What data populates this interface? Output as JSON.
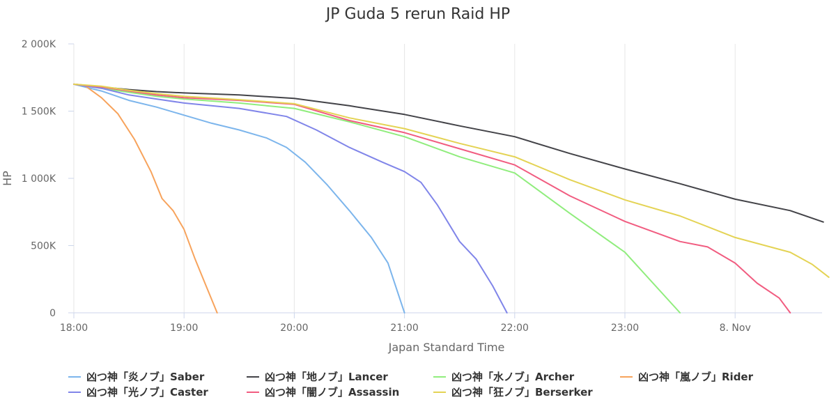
{
  "chart_data": {
    "type": "line",
    "title": "JP Guda 5 rerun Raid HP",
    "xlabel": "Japan Standard Time",
    "ylabel": "HP",
    "x_start": "18:00",
    "x_tick_labels": [
      "18:00",
      "19:00",
      "20:00",
      "21:00",
      "22:00",
      "23:00",
      "8. Nov"
    ],
    "y_tick_labels": [
      "0",
      "500K",
      "1 000K",
      "1 500K",
      "2 000K"
    ],
    "ylim": [
      0,
      2000
    ],
    "grid": "vertical",
    "legend_position": "bottom",
    "series": [
      {
        "name": "凶つ神「炎ノブ」Saber",
        "color": "#7cb5ec",
        "points": [
          [
            0,
            1700
          ],
          [
            0.25,
            1650
          ],
          [
            0.5,
            1580
          ],
          [
            0.75,
            1530
          ],
          [
            1,
            1470
          ],
          [
            1.25,
            1410
          ],
          [
            1.5,
            1360
          ],
          [
            1.75,
            1300
          ],
          [
            1.93,
            1230
          ],
          [
            2.1,
            1120
          ],
          [
            2.3,
            950
          ],
          [
            2.5,
            760
          ],
          [
            2.7,
            560
          ],
          [
            2.85,
            370
          ],
          [
            3.0,
            0
          ]
        ]
      },
      {
        "name": "凶つ神「地ノブ」Lancer",
        "color": "#434348",
        "points": [
          [
            0,
            1700
          ],
          [
            0.25,
            1680
          ],
          [
            0.5,
            1660
          ],
          [
            0.75,
            1645
          ],
          [
            1,
            1635
          ],
          [
            1.5,
            1620
          ],
          [
            2,
            1595
          ],
          [
            2.5,
            1540
          ],
          [
            3,
            1475
          ],
          [
            3.5,
            1390
          ],
          [
            4,
            1310
          ],
          [
            4.5,
            1185
          ],
          [
            5,
            1070
          ],
          [
            5.5,
            960
          ],
          [
            6,
            845
          ],
          [
            6.5,
            760
          ],
          [
            6.8,
            675
          ]
        ]
      },
      {
        "name": "凶つ神「水ノブ」Archer",
        "color": "#90ed7d",
        "points": [
          [
            0,
            1700
          ],
          [
            0.25,
            1670
          ],
          [
            0.5,
            1640
          ],
          [
            0.75,
            1610
          ],
          [
            1,
            1590
          ],
          [
            1.5,
            1560
          ],
          [
            2,
            1520
          ],
          [
            2.5,
            1420
          ],
          [
            3,
            1310
          ],
          [
            3.5,
            1160
          ],
          [
            4,
            1040
          ],
          [
            4.5,
            740
          ],
          [
            5,
            450
          ],
          [
            5.5,
            0
          ]
        ]
      },
      {
        "name": "凶つ神「嵐ノブ」Rider",
        "color": "#f7a35c",
        "points": [
          [
            0,
            1700
          ],
          [
            0.1,
            1690
          ],
          [
            0.25,
            1600
          ],
          [
            0.4,
            1480
          ],
          [
            0.55,
            1290
          ],
          [
            0.7,
            1050
          ],
          [
            0.8,
            850
          ],
          [
            0.9,
            760
          ],
          [
            1,
            620
          ],
          [
            1.1,
            400
          ],
          [
            1.2,
            200
          ],
          [
            1.3,
            0
          ]
        ]
      },
      {
        "name": "凶つ神「光ノブ」Caster",
        "color": "#8085e9",
        "points": [
          [
            0,
            1700
          ],
          [
            0.25,
            1670
          ],
          [
            0.5,
            1620
          ],
          [
            0.75,
            1590
          ],
          [
            1,
            1560
          ],
          [
            1.5,
            1520
          ],
          [
            1.93,
            1460
          ],
          [
            2.2,
            1360
          ],
          [
            2.5,
            1230
          ],
          [
            2.8,
            1120
          ],
          [
            3.0,
            1050
          ],
          [
            3.15,
            970
          ],
          [
            3.3,
            800
          ],
          [
            3.5,
            530
          ],
          [
            3.65,
            400
          ],
          [
            3.8,
            200
          ],
          [
            3.93,
            0
          ]
        ]
      },
      {
        "name": "凶つ神「闇ノブ」Assassin",
        "color": "#f15c80",
        "points": [
          [
            0,
            1700
          ],
          [
            0.25,
            1680
          ],
          [
            0.5,
            1650
          ],
          [
            0.75,
            1620
          ],
          [
            1,
            1600
          ],
          [
            1.5,
            1580
          ],
          [
            2,
            1550
          ],
          [
            2.5,
            1430
          ],
          [
            3,
            1340
          ],
          [
            3.5,
            1220
          ],
          [
            4,
            1100
          ],
          [
            4.5,
            870
          ],
          [
            5,
            680
          ],
          [
            5.5,
            530
          ],
          [
            5.75,
            490
          ],
          [
            6,
            370
          ],
          [
            6.2,
            220
          ],
          [
            6.4,
            110
          ],
          [
            6.5,
            0
          ]
        ]
      },
      {
        "name": "凶つ神「狂ノブ」Berserker",
        "color": "#e4d354",
        "points": [
          [
            0,
            1700
          ],
          [
            0.25,
            1685
          ],
          [
            0.5,
            1655
          ],
          [
            0.75,
            1630
          ],
          [
            1,
            1610
          ],
          [
            1.5,
            1585
          ],
          [
            2,
            1555
          ],
          [
            2.5,
            1450
          ],
          [
            3,
            1370
          ],
          [
            3.5,
            1260
          ],
          [
            4,
            1160
          ],
          [
            4.5,
            990
          ],
          [
            5,
            840
          ],
          [
            5.5,
            720
          ],
          [
            6,
            560
          ],
          [
            6.5,
            450
          ],
          [
            6.7,
            360
          ],
          [
            6.85,
            265
          ]
        ]
      }
    ]
  }
}
